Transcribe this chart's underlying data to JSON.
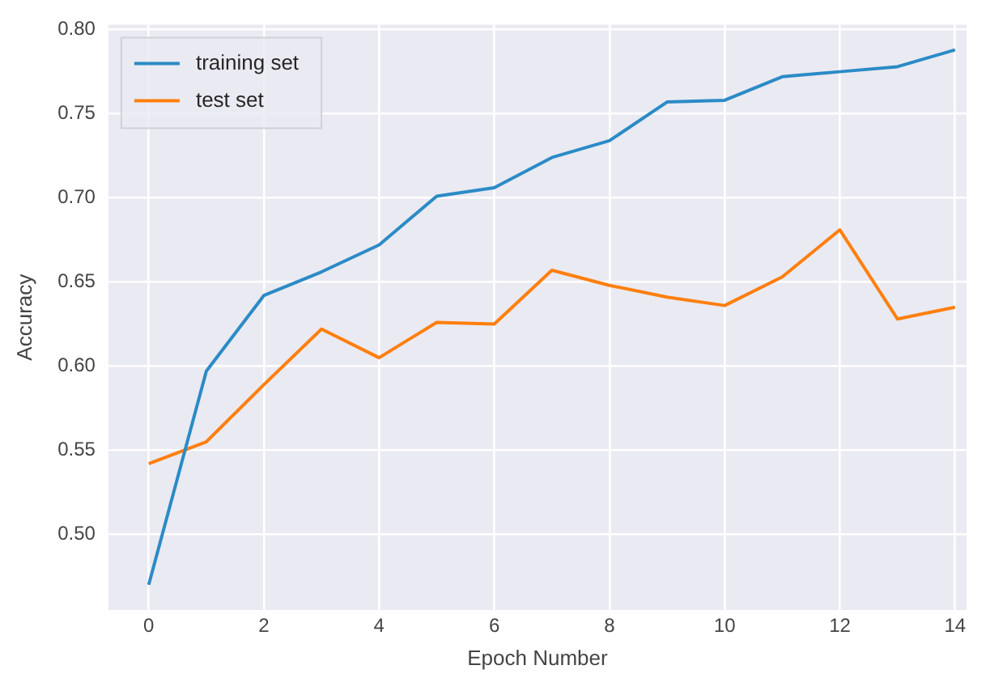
{
  "chart_data": {
    "type": "line",
    "xlabel": "Epoch Number",
    "ylabel": "Accuracy",
    "x": [
      0,
      1,
      2,
      3,
      4,
      5,
      6,
      7,
      8,
      9,
      10,
      11,
      12,
      13,
      14
    ],
    "series": [
      {
        "name": "training set",
        "color": "#2b8bc6",
        "values": [
          0.47,
          0.597,
          0.642,
          0.656,
          0.672,
          0.701,
          0.706,
          0.724,
          0.734,
          0.757,
          0.758,
          0.772,
          0.775,
          0.778,
          0.788
        ]
      },
      {
        "name": "test set",
        "color": "#ff7f0e",
        "values": [
          0.542,
          0.555,
          0.589,
          0.622,
          0.605,
          0.626,
          0.625,
          0.657,
          0.648,
          0.641,
          0.636,
          0.653,
          0.681,
          0.628,
          0.635
        ]
      }
    ],
    "xlim": [
      -0.7,
      14.2
    ],
    "ylim": [
      0.455,
      0.803
    ],
    "xticks": [
      0,
      2,
      4,
      6,
      8,
      10,
      12,
      14
    ],
    "yticks": [
      {
        "value": 0.5,
        "label": "0.50"
      },
      {
        "value": 0.55,
        "label": "0.55"
      },
      {
        "value": 0.6,
        "label": "0.60"
      },
      {
        "value": 0.65,
        "label": "0.65"
      },
      {
        "value": 0.7,
        "label": "0.70"
      },
      {
        "value": 0.75,
        "label": "0.75"
      },
      {
        "value": 0.8,
        "label": "0.80"
      }
    ],
    "grid": true,
    "legend": "top left",
    "marker": "none",
    "line_style": "solid"
  }
}
